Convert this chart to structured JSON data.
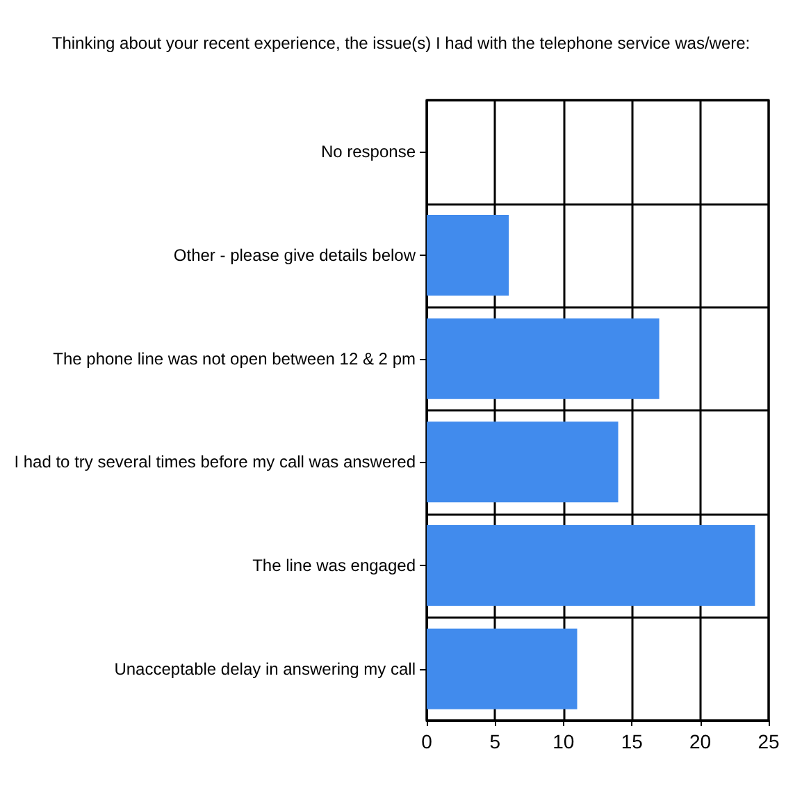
{
  "chart_data": {
    "type": "bar",
    "orientation": "horizontal",
    "title": "Thinking about your recent experience, the issue(s) I had with the telephone service was/were:",
    "categories": [
      "No response",
      "Other - please give details below",
      "The phone line was not open between 12 & 2 pm",
      "I had to try several times before my call was answered",
      "The line was engaged",
      "Unacceptable delay in answering my call"
    ],
    "values": [
      0,
      6,
      17,
      14,
      24,
      11
    ],
    "color": "#418bed",
    "xlim": [
      0,
      25
    ],
    "xticks": [
      0,
      5,
      10,
      15,
      20,
      25
    ],
    "grid": true
  }
}
